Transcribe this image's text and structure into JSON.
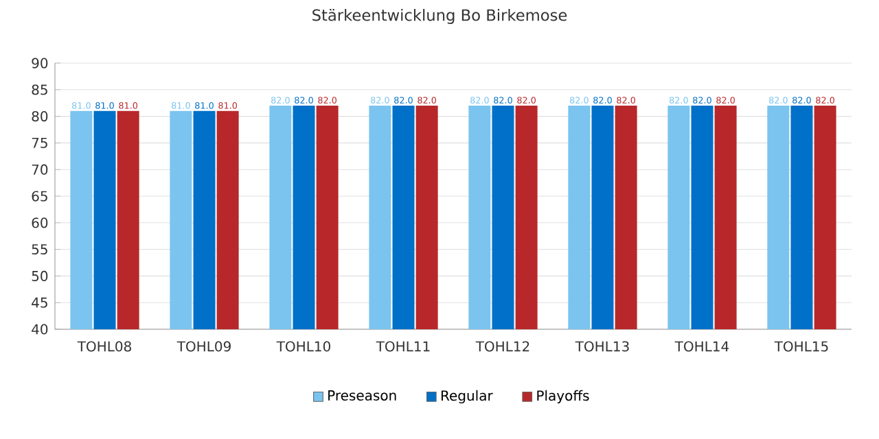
{
  "chart_data": {
    "type": "bar",
    "title": "Stärkeentwicklung Bo Birkemose",
    "categories": [
      "TOHL08",
      "TOHL09",
      "TOHL10",
      "TOHL11",
      "TOHL12",
      "TOHL13",
      "TOHL14",
      "TOHL15"
    ],
    "series": [
      {
        "name": "Preseason",
        "color": "#7ac4ef",
        "values": [
          81.0,
          81.0,
          82.0,
          82.0,
          82.0,
          82.0,
          82.0,
          82.0
        ],
        "value_labels": [
          "81.0",
          "81.0",
          "82.0",
          "82.0",
          "82.0",
          "82.0",
          "82.0",
          "82.0"
        ]
      },
      {
        "name": "Regular",
        "color": "#0070c8",
        "values": [
          81.0,
          81.0,
          82.0,
          82.0,
          82.0,
          82.0,
          82.0,
          82.0
        ],
        "value_labels": [
          "81.0",
          "81.0",
          "82.0",
          "82.0",
          "82.0",
          "82.0",
          "82.0",
          "82.0"
        ]
      },
      {
        "name": "Playoffs",
        "color": "#b8282a",
        "values": [
          81.0,
          81.0,
          82.0,
          82.0,
          82.0,
          82.0,
          82.0,
          82.0
        ],
        "value_labels": [
          "81.0",
          "81.0",
          "82.0",
          "82.0",
          "82.0",
          "82.0",
          "82.0",
          "82.0"
        ]
      }
    ],
    "ylim": [
      40,
      90
    ],
    "yticks": [
      40,
      45,
      50,
      55,
      60,
      65,
      70,
      75,
      80,
      85,
      90
    ],
    "grid": "y",
    "legend": "bottom"
  }
}
